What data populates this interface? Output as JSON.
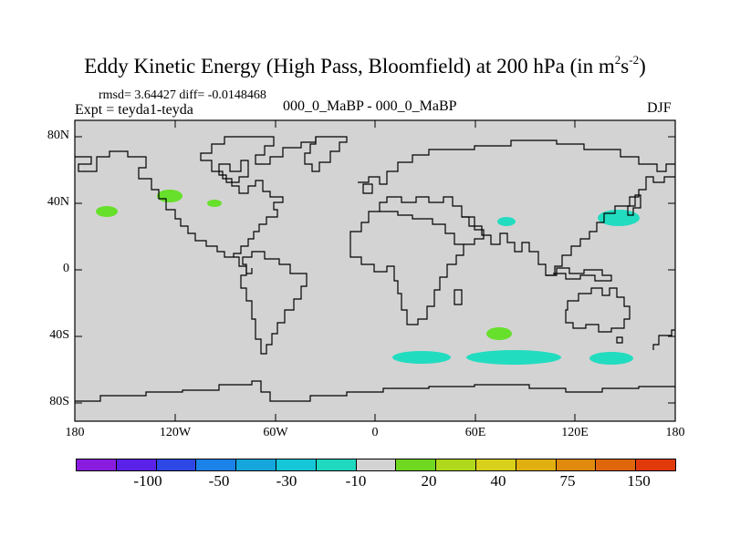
{
  "title": {
    "main": "Eddy Kinetic Energy (High Pass, Bloomfield) at 200 hPa (in m",
    "sup1": "2",
    "mid": "s",
    "sup2": "-2",
    "close": ")"
  },
  "stats": "rmsd= 3.64427 diff= -0.0148468",
  "expt": "Expt = teyda1-teyda",
  "center_label": "000_0_MaBP - 000_0_MaBP",
  "season": "DJF",
  "axes": {
    "y_ticks": [
      "80N",
      "40N",
      "0",
      "40S",
      "80S"
    ],
    "x_ticks": [
      "180",
      "120W",
      "60W",
      "0",
      "60E",
      "120E",
      "180"
    ]
  },
  "colorbar": {
    "colors": [
      "#8a1ce0",
      "#5a22e8",
      "#2e48e6",
      "#1a82e8",
      "#14a6dc",
      "#14c6d8",
      "#1ed8c0",
      "#d3d3d3",
      "#70d820",
      "#b0d81c",
      "#d8d01a",
      "#e0b010",
      "#e08a0e",
      "#e0660c",
      "#e03a0a"
    ],
    "labels": [
      "-100",
      "-50",
      "-30",
      "-10",
      "20",
      "40",
      "75",
      "150"
    ]
  },
  "anomaly_colors": {
    "green": "#66e02a",
    "cyan": "#22dcc0",
    "land_bg": "#d3d3d3"
  }
}
